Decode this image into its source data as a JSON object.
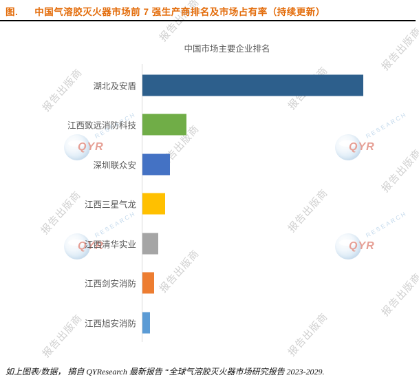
{
  "header": {
    "prefix": "图.",
    "title": "中国气溶胶灭火器市场前 7 强生产商排名及市场占有率（持续更新）",
    "accent_color": "#E36C0A"
  },
  "chart_data": {
    "type": "bar",
    "orientation": "horizontal",
    "title": "中国市场主要企业排名",
    "categories": [
      "湖北及安盾",
      "江西致远消防科技",
      "深圳联众安",
      "江西三星气龙",
      "江西清华实业",
      "江西剑安消防",
      "江西旭安消防"
    ],
    "values": [
      32.1,
      6.4,
      4.0,
      3.3,
      2.3,
      1.7,
      1.1
    ],
    "values_note": "estimated relative market share %, x-axis unlabeled in source image",
    "colors": [
      "#2D5F8C",
      "#70AD47",
      "#4472C4",
      "#FFC000",
      "#A5A5A5",
      "#ED7D31",
      "#5B9BD5"
    ],
    "xlabel": "",
    "ylabel": "",
    "xlim": [
      0,
      32.1
    ],
    "grid": false,
    "legend": false,
    "axis_color": "#d9d9d9",
    "label_color": "#595959"
  },
  "source_note": "如上图表/数据， 摘自 QYResearch 最新报告 “全球气溶胶灭火器市场研究报告 2023-2029.",
  "watermark": {
    "text": "报告出版商",
    "logo_qyr": "QYR",
    "logo_research": "RESEARCH"
  }
}
